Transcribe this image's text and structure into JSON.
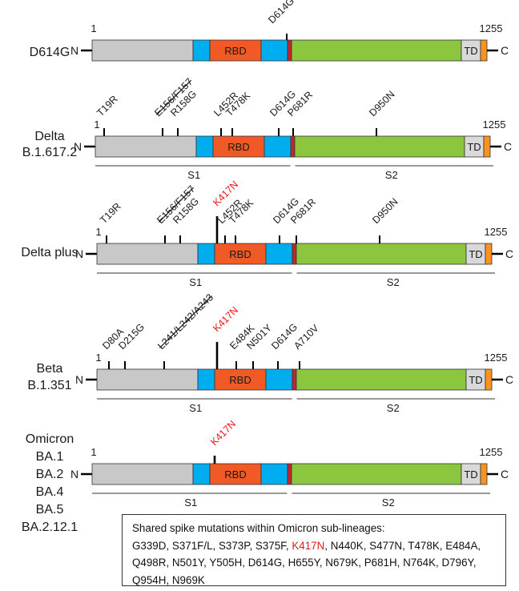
{
  "colors": {
    "nterm": "#c8c8c8",
    "signal": "#00aeef",
    "rbd": "#f15a24",
    "cleavage": "#c1272d",
    "s2": "#8cc63f",
    "td": "#d9d9d9",
    "cterm": "#f7931e",
    "highlight": "#e31a1c"
  },
  "common": {
    "start": "1",
    "end": "1255",
    "n_label": "N",
    "c_label": "C",
    "rbd_label": "RBD",
    "td_label": "TD",
    "s1_label": "S1",
    "s2_label": "S2"
  },
  "variants": [
    {
      "name": [
        "D614G"
      ],
      "mutations": [
        {
          "label": "D614G",
          "red": false,
          "strike": false
        }
      ],
      "show_subunits": false
    },
    {
      "name": [
        "Delta",
        "B.1.617.2"
      ],
      "mutations": [
        {
          "label": "T19R",
          "red": false,
          "strike": false
        },
        {
          "label": "E156/F157",
          "red": false,
          "strike": true
        },
        {
          "label": "R158G",
          "red": false,
          "strike": false
        },
        {
          "label": "L452R",
          "red": false,
          "strike": false
        },
        {
          "label": "T478K",
          "red": false,
          "strike": false
        },
        {
          "label": "D614G",
          "red": false,
          "strike": false
        },
        {
          "label": "P681R",
          "red": false,
          "strike": false
        },
        {
          "label": "D950N",
          "red": false,
          "strike": false
        }
      ],
      "show_subunits": true
    },
    {
      "name": [
        "Delta plus"
      ],
      "mutations": [
        {
          "label": "T19R",
          "red": false,
          "strike": false
        },
        {
          "label": "E156/F157",
          "red": false,
          "strike": true
        },
        {
          "label": "R158G",
          "red": false,
          "strike": false
        },
        {
          "label": "K417N",
          "red": true,
          "strike": false
        },
        {
          "label": "L452R",
          "red": false,
          "strike": false
        },
        {
          "label": "T478K",
          "red": false,
          "strike": false
        },
        {
          "label": "D614G",
          "red": false,
          "strike": false
        },
        {
          "label": "P681R",
          "red": false,
          "strike": false
        },
        {
          "label": "D950N",
          "red": false,
          "strike": false
        }
      ],
      "show_subunits": true
    },
    {
      "name": [
        "Beta",
        "B.1.351"
      ],
      "mutations": [
        {
          "label": "D80A",
          "red": false,
          "strike": false
        },
        {
          "label": "D215G",
          "red": false,
          "strike": false
        },
        {
          "label": "L241/L242/A243",
          "red": false,
          "strike": true
        },
        {
          "label": "K417N",
          "red": true,
          "strike": false
        },
        {
          "label": "E484K",
          "red": false,
          "strike": false
        },
        {
          "label": "N501Y",
          "red": false,
          "strike": false
        },
        {
          "label": "D614G",
          "red": false,
          "strike": false
        },
        {
          "label": "A710V",
          "red": false,
          "strike": false
        }
      ],
      "show_subunits": true
    },
    {
      "name": [
        "Omicron",
        "BA.1",
        "BA.2",
        "BA.4",
        "BA.5",
        "BA.2.12.1"
      ],
      "mutations": [
        {
          "label": "K417N",
          "red": true,
          "strike": false
        }
      ],
      "show_subunits": true
    }
  ],
  "shared_box": {
    "title": "Shared spike mutations within Omicron sub-lineages:",
    "mutations": [
      {
        "label": "G339D",
        "red": false
      },
      {
        "label": "S371F/L",
        "red": false
      },
      {
        "label": "S373P",
        "red": false
      },
      {
        "label": "S375F",
        "red": false
      },
      {
        "label": "K417N",
        "red": true
      },
      {
        "label": "N440K",
        "red": false
      },
      {
        "label": "S477N",
        "red": false
      },
      {
        "label": "T478K",
        "red": false
      },
      {
        "label": "E484A",
        "red": false
      },
      {
        "label": "Q498R",
        "red": false
      },
      {
        "label": "N501Y",
        "red": false
      },
      {
        "label": "Y505H",
        "red": false
      },
      {
        "label": "D614G",
        "red": false
      },
      {
        "label": "H655Y",
        "red": false
      },
      {
        "label": "N679K",
        "red": false
      },
      {
        "label": "P681H",
        "red": false
      },
      {
        "label": "N764K",
        "red": false
      },
      {
        "label": "D796Y",
        "red": false
      },
      {
        "label": "Q954H",
        "red": false
      },
      {
        "label": "N969K",
        "red": false
      }
    ]
  }
}
